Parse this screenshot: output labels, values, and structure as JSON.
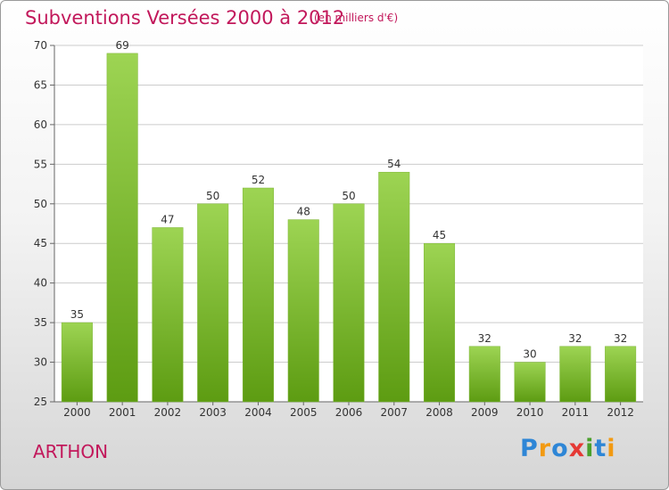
{
  "header": {
    "title": "Subventions Versées 2000 à 2012",
    "subtitle": "(en milliers d'€)"
  },
  "footer": {
    "commune": "ARTHON",
    "logo_letters": [
      "P",
      "r",
      "o",
      "x",
      "i",
      "t",
      "i"
    ]
  },
  "colors": {
    "accent": "#c2185b",
    "bar_top": "#9dd453",
    "bar_bottom": "#5d9c12",
    "grid": "#cccccc"
  },
  "chart_data": {
    "type": "bar",
    "title": "Subventions Versées 2000 à 2012",
    "subtitle": "(en milliers d'€)",
    "xlabel": "",
    "ylabel": "",
    "categories": [
      "2000",
      "2001",
      "2002",
      "2003",
      "2004",
      "2005",
      "2006",
      "2007",
      "2008",
      "2009",
      "2010",
      "2011",
      "2012"
    ],
    "values": [
      35,
      69,
      47,
      50,
      52,
      48,
      50,
      54,
      45,
      32,
      30,
      32,
      32
    ],
    "ylim": [
      25,
      70
    ],
    "yticks": [
      25,
      30,
      35,
      40,
      45,
      50,
      55,
      60,
      65,
      70
    ],
    "grid": true,
    "data_labels": true
  }
}
